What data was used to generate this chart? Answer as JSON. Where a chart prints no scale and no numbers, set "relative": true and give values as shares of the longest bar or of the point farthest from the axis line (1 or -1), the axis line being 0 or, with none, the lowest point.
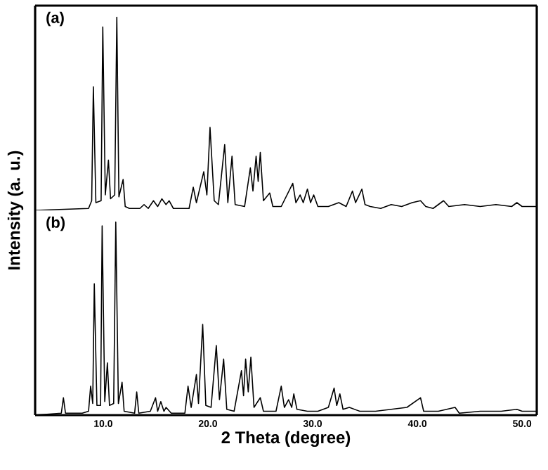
{
  "chart_data": [
    {
      "type": "line",
      "ylabel": "Intensity (a. u.)",
      "annotations": [
        "(a)"
      ],
      "relative": true,
      "color": "#000000",
      "xlim": [
        3.5,
        51.4
      ],
      "tick_labels": false,
      "x": [
        3.5,
        8.6,
        8.9,
        9.06,
        9.3,
        9.8,
        9.96,
        10.2,
        10.5,
        10.7,
        11.1,
        11.3,
        11.5,
        11.9,
        12.1,
        12.5,
        13.5,
        13.9,
        14.3,
        14.8,
        15.2,
        15.6,
        16.0,
        16.3,
        16.7,
        18.2,
        18.6,
        18.9,
        19.6,
        19.9,
        20.2,
        20.6,
        21.0,
        21.6,
        21.9,
        22.3,
        22.6,
        23.5,
        24.05,
        24.3,
        24.6,
        24.8,
        25.0,
        25.3,
        25.9,
        26.2,
        27.0,
        28.1,
        28.4,
        28.8,
        29.1,
        29.5,
        29.8,
        30.1,
        30.5,
        31.5,
        32.5,
        33.2,
        33.8,
        34.1,
        34.7,
        35.0,
        35.5,
        36.5,
        37.5,
        38.5,
        39.5,
        40.3,
        40.8,
        41.5,
        42.5,
        43.0,
        44.5,
        46.0,
        47.5,
        49.0,
        49.5,
        50.0,
        51.4
      ],
      "values": [
        0.0,
        0.01,
        0.05,
        0.64,
        0.04,
        0.05,
        0.95,
        0.08,
        0.26,
        0.06,
        0.08,
        1.0,
        0.07,
        0.16,
        0.02,
        0.01,
        0.01,
        0.03,
        0.01,
        0.05,
        0.02,
        0.06,
        0.03,
        0.05,
        0.01,
        0.01,
        0.12,
        0.04,
        0.2,
        0.08,
        0.43,
        0.05,
        0.03,
        0.34,
        0.04,
        0.28,
        0.03,
        0.02,
        0.22,
        0.1,
        0.28,
        0.15,
        0.3,
        0.05,
        0.09,
        0.02,
        0.02,
        0.14,
        0.04,
        0.08,
        0.04,
        0.11,
        0.04,
        0.08,
        0.02,
        0.02,
        0.04,
        0.02,
        0.1,
        0.04,
        0.11,
        0.03,
        0.02,
        0.01,
        0.03,
        0.02,
        0.04,
        0.05,
        0.02,
        0.01,
        0.05,
        0.02,
        0.03,
        0.02,
        0.03,
        0.02,
        0.04,
        0.02,
        0.02
      ]
    },
    {
      "type": "line",
      "xlabel": "2 Theta (degree)",
      "annotations": [
        "(b)"
      ],
      "relative": true,
      "color": "#000000",
      "xlim": [
        3.5,
        51.4
      ],
      "xticks": [
        {
          "value": 10,
          "label": "10.0"
        },
        {
          "value": 20,
          "label": "20.0"
        },
        {
          "value": 30,
          "label": "30.0"
        },
        {
          "value": 40,
          "label": "40.0"
        },
        {
          "value": 50,
          "label": "50.0"
        }
      ],
      "tick_labels": "x",
      "x": [
        3.5,
        6.0,
        6.2,
        6.4,
        7.5,
        8.0,
        8.6,
        8.8,
        9.0,
        9.15,
        9.4,
        9.75,
        9.9,
        10.15,
        10.4,
        10.6,
        11.0,
        11.2,
        11.45,
        11.8,
        12.0,
        13.0,
        13.2,
        13.4,
        14.5,
        15.0,
        15.2,
        15.5,
        15.8,
        16.0,
        16.5,
        17.8,
        18.1,
        18.4,
        18.9,
        19.1,
        19.5,
        19.8,
        20.3,
        20.8,
        21.1,
        21.5,
        21.8,
        22.5,
        23.2,
        23.4,
        23.6,
        23.85,
        24.1,
        24.4,
        25.0,
        25.3,
        26.5,
        27.0,
        27.3,
        27.7,
        28.0,
        28.2,
        28.5,
        29.5,
        30.5,
        31.5,
        32.05,
        32.3,
        32.6,
        32.9,
        33.5,
        34.5,
        36.0,
        37.5,
        39.0,
        40.3,
        40.6,
        42.0,
        43.6,
        44.0,
        46.0,
        48.0,
        49.5,
        50.0,
        51.4
      ],
      "values": [
        0.0,
        0.01,
        0.09,
        0.01,
        0.01,
        0.01,
        0.02,
        0.15,
        0.06,
        0.68,
        0.05,
        0.05,
        0.98,
        0.07,
        0.27,
        0.05,
        0.06,
        1.0,
        0.06,
        0.17,
        0.02,
        0.01,
        0.12,
        0.01,
        0.02,
        0.09,
        0.02,
        0.07,
        0.02,
        0.04,
        0.01,
        0.01,
        0.15,
        0.04,
        0.21,
        0.06,
        0.47,
        0.05,
        0.04,
        0.36,
        0.08,
        0.29,
        0.03,
        0.02,
        0.23,
        0.1,
        0.29,
        0.12,
        0.3,
        0.04,
        0.09,
        0.02,
        0.02,
        0.15,
        0.04,
        0.08,
        0.04,
        0.11,
        0.03,
        0.02,
        0.02,
        0.04,
        0.14,
        0.05,
        0.11,
        0.03,
        0.04,
        0.02,
        0.02,
        0.03,
        0.04,
        0.09,
        0.02,
        0.02,
        0.04,
        0.01,
        0.02,
        0.02,
        0.03,
        0.02,
        0.02
      ]
    }
  ]
}
